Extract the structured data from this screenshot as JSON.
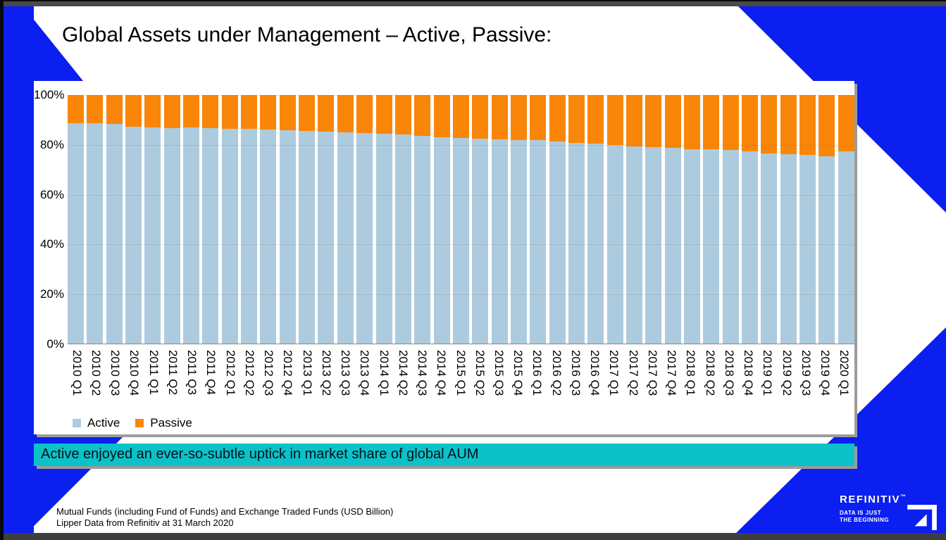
{
  "slide": {
    "title": "Global Assets under Management – Active, Passive:",
    "banner": "Active enjoyed an ever-so-subtle uptick in market share of global AUM",
    "footnote_line1": "Mutual Funds (including Fund of Funds) and Exchange Traded Funds (USD Billion)",
    "footnote_line2": "Lipper Data from Refinitiv at 31 March 2020"
  },
  "logo": {
    "brand": "REFINITIV",
    "trademark": "™",
    "tagline": "DATA IS JUST\nTHE BEGINNING"
  },
  "colors": {
    "brand_blue": "#0B1FF0",
    "active_blue": "#ADCBDE",
    "passive_orange": "#F98609",
    "banner_cyan": "#0BC2C8",
    "shadow_gray": "#9C9C9C"
  },
  "chart_data": {
    "type": "bar",
    "stacked": true,
    "stack_unit": "percent",
    "title": "Global Assets under Management – Active, Passive:",
    "xlabel": "",
    "ylabel": "",
    "ylim": [
      0,
      100
    ],
    "y_ticks": [
      "0%",
      "20%",
      "40%",
      "60%",
      "80%",
      "100%"
    ],
    "gridlines": "dotted-horizontal",
    "legend_position": "bottom-left",
    "categories": [
      "2010 Q1",
      "2010 Q2",
      "2010 Q3",
      "2010 Q4",
      "2011 Q1",
      "2011 Q2",
      "2011 Q3",
      "2011 Q4",
      "2012 Q1",
      "2012 Q2",
      "2012 Q3",
      "2012 Q4",
      "2013 Q1",
      "2013 Q2",
      "2013 Q3",
      "2013 Q4",
      "2014 Q1",
      "2014 Q2",
      "2014 Q3",
      "2014 Q4",
      "2015 Q1",
      "2015 Q2",
      "2015 Q3",
      "2015 Q4",
      "2016 Q1",
      "2016 Q2",
      "2016 Q3",
      "2016 Q4",
      "2017 Q1",
      "2017 Q2",
      "2017 Q3",
      "2017 Q4",
      "2018 Q1",
      "2018 Q2",
      "2018 Q3",
      "2018 Q4",
      "2019 Q1",
      "2019 Q2",
      "2019 Q3",
      "2019 Q4",
      "2020 Q1"
    ],
    "series": [
      {
        "name": "Active",
        "color": "#ADCBDE",
        "values": [
          88.8,
          88.7,
          88.4,
          87.3,
          87.0,
          86.8,
          87.0,
          86.8,
          86.5,
          86.3,
          86.0,
          85.7,
          85.5,
          85.2,
          84.9,
          84.6,
          84.3,
          84.0,
          83.6,
          83.1,
          82.6,
          82.4,
          82.2,
          82.0,
          81.9,
          81.4,
          80.8,
          80.5,
          79.8,
          79.4,
          79.1,
          78.8,
          78.3,
          78.1,
          77.8,
          77.2,
          76.6,
          76.2,
          75.8,
          75.3,
          77.3
        ]
      },
      {
        "name": "Passive",
        "color": "#F98609",
        "values": [
          11.2,
          11.3,
          11.6,
          12.7,
          13.0,
          13.2,
          13.0,
          13.2,
          13.5,
          13.7,
          14.0,
          14.3,
          14.5,
          14.8,
          15.1,
          15.4,
          15.7,
          16.0,
          16.4,
          16.9,
          17.4,
          17.6,
          17.8,
          18.0,
          18.1,
          18.6,
          19.2,
          19.5,
          20.2,
          20.6,
          20.9,
          21.2,
          21.7,
          21.9,
          22.2,
          22.8,
          23.4,
          23.8,
          24.2,
          24.7,
          22.7
        ]
      }
    ]
  }
}
